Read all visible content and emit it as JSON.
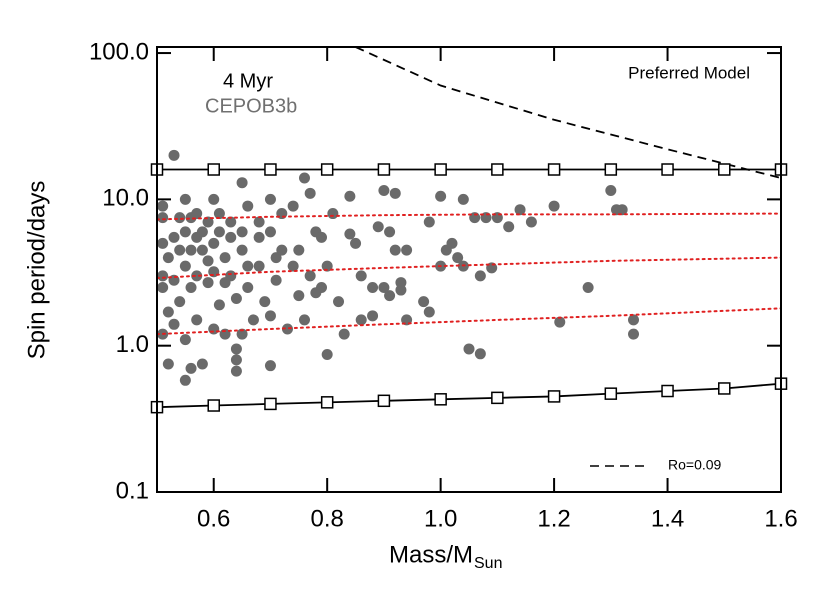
{
  "chart_data": {
    "type": "scatter",
    "title": "Preferred Model",
    "annotations": [
      "4 Myr",
      "CEPOB3b"
    ],
    "xlabel": "Mass/M",
    "xlabel_subscript": "Sun",
    "ylabel": "Spin period/days",
    "xlim": [
      0.5,
      1.6
    ],
    "ylim": [
      0.1,
      110
    ],
    "log_y": true,
    "xticks": [
      0.6,
      0.8,
      {
        "value": 1,
        "label": "1.0"
      },
      1.2,
      1.4,
      1.6
    ],
    "yticks": [
      {
        "value": 0.1,
        "label": "0.1"
      },
      {
        "value": 1,
        "label": "1.0"
      },
      {
        "value": 10,
        "label": "10.0"
      },
      {
        "value": 100,
        "label": "100.0"
      }
    ],
    "legend": "lower right",
    "series": [
      {
        "type": "scatter",
        "color": "#6a6a6a",
        "x": [
          0.53,
          0.51,
          0.51,
          0.51,
          0.52,
          0.51,
          0.51,
          0.52,
          0.51,
          0.52,
          0.53,
          0.53,
          0.53,
          0.54,
          0.54,
          0.54,
          0.55,
          0.55,
          0.55,
          0.55,
          0.55,
          0.56,
          0.56,
          0.56,
          0.56,
          0.57,
          0.57,
          0.57,
          0.57,
          0.58,
          0.58,
          0.58,
          0.59,
          0.59,
          0.59,
          0.6,
          0.6,
          0.6,
          0.6,
          0.61,
          0.61,
          0.61,
          0.62,
          0.62,
          0.62,
          0.63,
          0.63,
          0.63,
          0.64,
          0.64,
          0.64,
          0.64,
          0.65,
          0.65,
          0.65,
          0.65,
          0.66,
          0.66,
          0.66,
          0.67,
          0.68,
          0.68,
          0.68,
          0.69,
          0.7,
          0.7,
          0.7,
          0.7,
          0.71,
          0.71,
          0.72,
          0.72,
          0.73,
          0.74,
          0.74,
          0.75,
          0.75,
          0.76,
          0.76,
          0.77,
          0.77,
          0.78,
          0.78,
          0.79,
          0.79,
          0.8,
          0.8,
          0.81,
          0.82,
          0.83,
          0.84,
          0.84,
          0.85,
          0.86,
          0.86,
          0.88,
          0.88,
          0.89,
          0.9,
          0.9,
          0.91,
          0.91,
          0.92,
          0.92,
          0.93,
          0.93,
          0.94,
          0.94,
          0.97,
          0.98,
          0.98,
          1.0,
          1.0,
          1.01,
          1.02,
          1.03,
          1.04,
          1.04,
          1.05,
          1.06,
          1.07,
          1.07,
          1.08,
          1.09,
          1.1,
          1.12,
          1.14,
          1.16,
          1.2,
          1.21,
          1.26,
          1.3,
          1.31,
          1.32,
          1.34,
          1.34
        ],
        "values": [
          20,
          9,
          7.5,
          5,
          4,
          3,
          2.5,
          1.7,
          1.2,
          0.75,
          5.5,
          2.8,
          1.4,
          7.5,
          4.5,
          2,
          10,
          6,
          3.5,
          1.1,
          0.58,
          0.7,
          7.5,
          4.5,
          2.5,
          8,
          5.5,
          3,
          1.5,
          0.75,
          6,
          4.5,
          7,
          3.8,
          2.7,
          10,
          5,
          3.2,
          1.3,
          8,
          6,
          1.9,
          4,
          2.7,
          1.2,
          7,
          5.5,
          3,
          0.95,
          0.8,
          0.67,
          2.1,
          13,
          6,
          4.5,
          1.2,
          9,
          3.5,
          2.5,
          1.5,
          7,
          5.5,
          3.5,
          2,
          10,
          6,
          1.6,
          0.73,
          4,
          2.8,
          8,
          4.5,
          1.3,
          9,
          3.5,
          4.5,
          2.2,
          14,
          1.5,
          11,
          3,
          6,
          2.3,
          2.5,
          5.5,
          0.87,
          3.5,
          8,
          2,
          1.2,
          10.5,
          5.8,
          5,
          3,
          1.5,
          1.6,
          2.5,
          6.5,
          11.5,
          2.5,
          6,
          2.2,
          11,
          4.5,
          2.7,
          2.4,
          4.5,
          1.5,
          2,
          1.7,
          7,
          10.5,
          3.5,
          4.5,
          5,
          4,
          3.5,
          10,
          0.95,
          7.5,
          0.88,
          3,
          7.5,
          3.4,
          7.5,
          6.5,
          8.5,
          7,
          9,
          1.45,
          2.5,
          11.5,
          8.5,
          8.5,
          1.2,
          1.5
        ]
      },
      {
        "type": "line",
        "color": "#000000",
        "style": "solid",
        "markers": true,
        "x": [
          0.5,
          0.6,
          0.7,
          0.8,
          0.9,
          1.0,
          1.1,
          1.2,
          1.3,
          1.4,
          1.5,
          1.6
        ],
        "values": [
          16,
          16,
          16,
          16,
          16,
          16,
          16,
          16,
          16,
          16,
          16,
          16
        ]
      },
      {
        "type": "line",
        "color": "#000000",
        "style": "solid",
        "markers": true,
        "x": [
          0.5,
          0.6,
          0.7,
          0.8,
          0.9,
          1.0,
          1.1,
          1.2,
          1.3,
          1.4,
          1.5,
          1.6
        ],
        "values": [
          0.38,
          0.39,
          0.4,
          0.41,
          0.42,
          0.43,
          0.44,
          0.45,
          0.47,
          0.49,
          0.51,
          0.55
        ]
      },
      {
        "type": "line",
        "color": "#e02020",
        "style": "dotted",
        "x": [
          0.5,
          0.7,
          0.9,
          1.1,
          1.3,
          1.6
        ],
        "values": [
          7.3,
          7.6,
          7.8,
          7.9,
          7.9,
          8.0
        ]
      },
      {
        "type": "line",
        "color": "#e02020",
        "style": "dotted",
        "x": [
          0.5,
          0.7,
          0.9,
          1.1,
          1.3,
          1.6
        ],
        "values": [
          2.9,
          3.2,
          3.4,
          3.6,
          3.8,
          4.0
        ]
      },
      {
        "type": "line",
        "color": "#e02020",
        "style": "dotted",
        "x": [
          0.5,
          0.7,
          0.9,
          1.1,
          1.3,
          1.6
        ],
        "values": [
          1.2,
          1.3,
          1.4,
          1.5,
          1.6,
          1.8
        ]
      },
      {
        "type": "line",
        "name": "Ro=0.09",
        "color": "#000000",
        "style": "dashed",
        "x": [
          0.85,
          1.0,
          1.2,
          1.4,
          1.6
        ],
        "values": [
          110,
          60,
          35,
          22,
          14
        ]
      }
    ]
  }
}
